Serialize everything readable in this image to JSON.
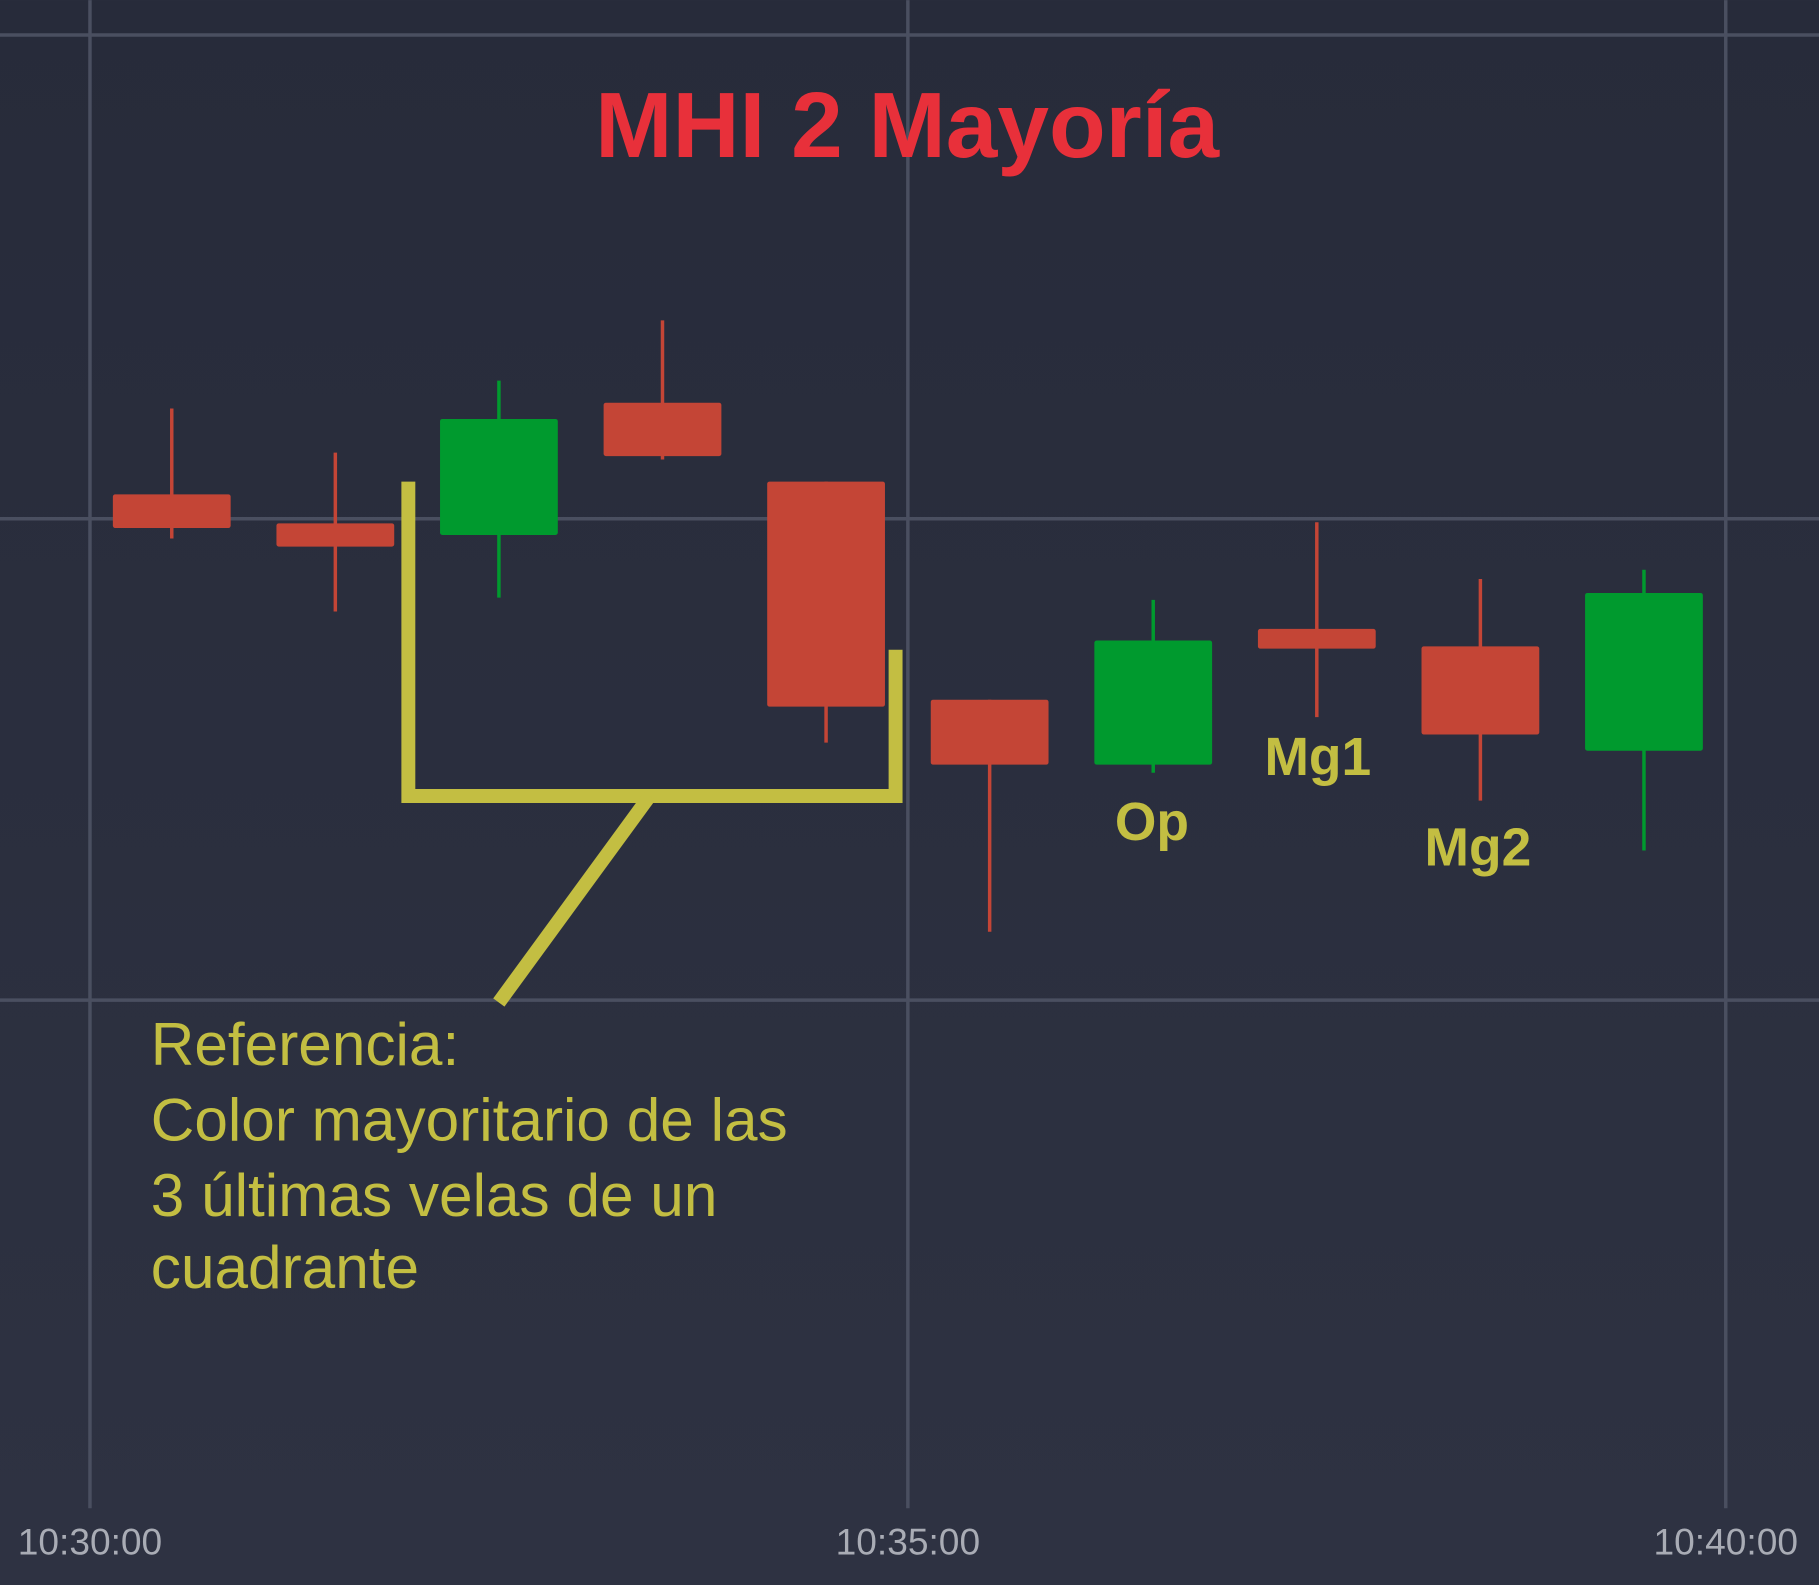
{
  "chart_data": {
    "type": "candlestick",
    "title": "MHI 2 Mayoría",
    "x": [
      0.5,
      1.5,
      2.5,
      3.5,
      4.5,
      5.5,
      6.5,
      7.5,
      8.5,
      9.5
    ],
    "open": [
      87.4,
      84.9,
      83.9,
      95.3,
      88.5,
      69.7,
      64.1,
      75.8,
      74.3,
      65.3
    ],
    "high": [
      94.8,
      91.0,
      97.2,
      102.4,
      88.5,
      69.7,
      78.3,
      85.0,
      80.1,
      80.9
    ],
    "low": [
      83.6,
      77.3,
      78.5,
      90.4,
      66.0,
      49.7,
      63.4,
      68.2,
      61.0,
      56.7
    ],
    "close": [
      84.5,
      82.9,
      93.9,
      90.7,
      69.1,
      64.1,
      74.8,
      74.1,
      66.7,
      78.9
    ],
    "up_color": "#009a2e",
    "down_color": "#c44536",
    "xlim": [
      -0.55,
      10.57
    ],
    "xticks": [
      {
        "value": 0,
        "label": "10:30:00"
      },
      {
        "value": 5,
        "label": "10:35:00"
      },
      {
        "value": 10,
        "label": "10:40:00"
      }
    ],
    "ylim": [
      0,
      130
    ],
    "grid": true,
    "annotations": {
      "op": "Op",
      "mg1": "Mg1",
      "mg2": "Mg2",
      "reference": [
        "Referencia:",
        "Color mayoritario de las",
        "3 últimas velas de un",
        "cuadrante"
      ]
    }
  }
}
